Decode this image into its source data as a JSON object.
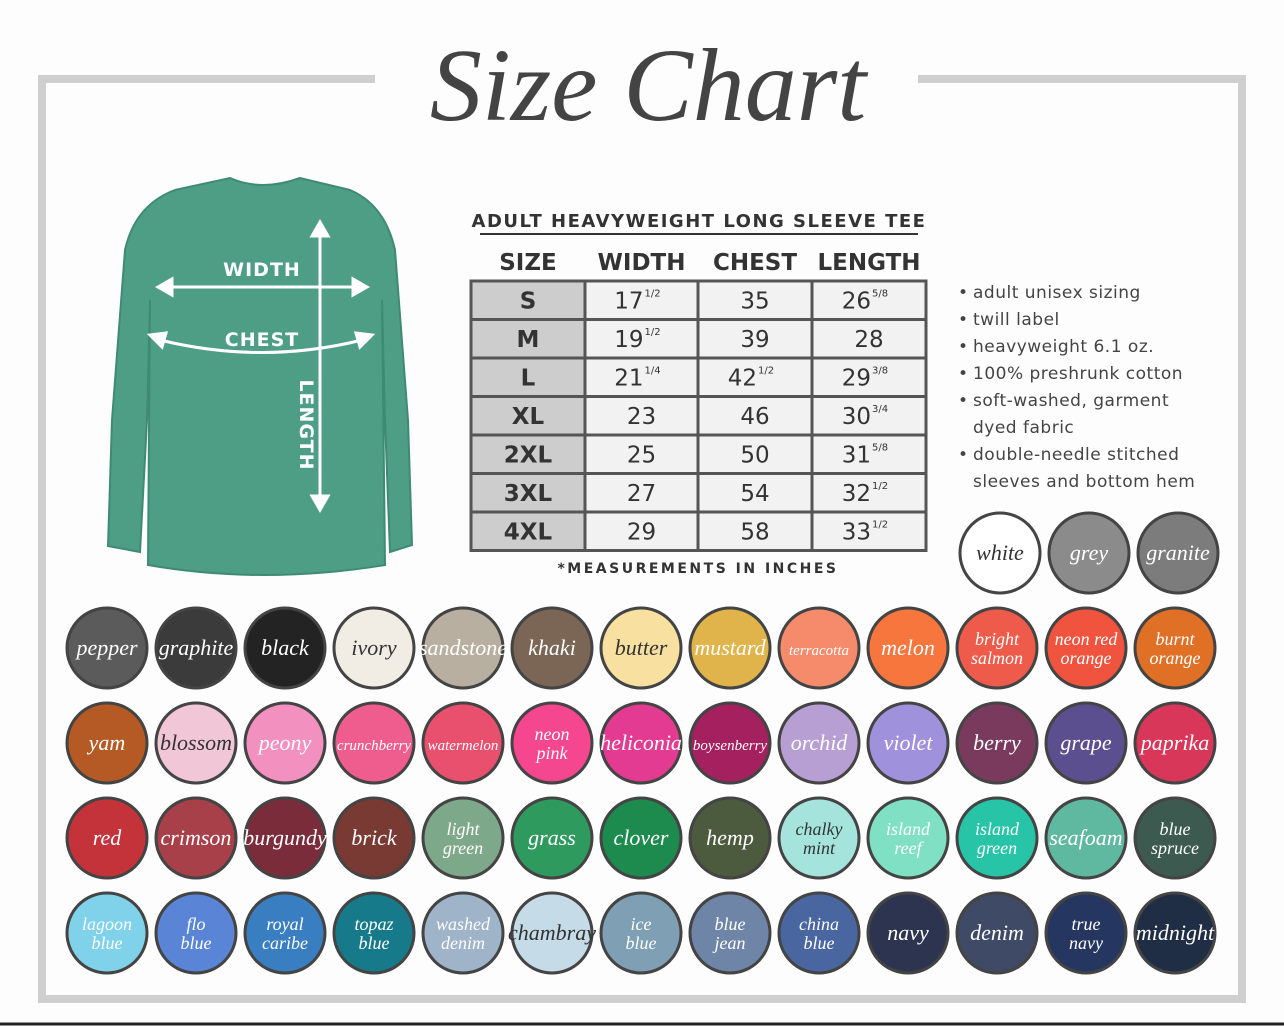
{
  "header": {
    "title": "Size Chart"
  },
  "shirt": {
    "width_label": "WIDTH",
    "chest_label": "CHEST",
    "length_label": "LENGTH"
  },
  "table": {
    "title": "ADULT HEAVYWEIGHT LONG SLEEVE TEE",
    "columns": [
      "SIZE",
      "WIDTH",
      "CHEST",
      "LENGTH"
    ],
    "rows": [
      [
        "S",
        {
          "whole": 17,
          "frac": "1/2"
        },
        35,
        {
          "whole": 26,
          "frac": "5/8"
        }
      ],
      [
        "M",
        {
          "whole": 19,
          "frac": "1/2"
        },
        39,
        28
      ],
      [
        "L",
        {
          "whole": 21,
          "frac": "1/4"
        },
        {
          "whole": 42,
          "frac": "1/2"
        },
        {
          "whole": 29,
          "frac": "3/8"
        }
      ],
      [
        "XL",
        23,
        46,
        {
          "whole": 30,
          "frac": "3/4"
        }
      ],
      [
        "2XL",
        25,
        50,
        {
          "whole": 31,
          "frac": "5/8"
        }
      ],
      [
        "3XL",
        27,
        54,
        {
          "whole": 32,
          "frac": "1/2"
        }
      ],
      [
        "4XL",
        29,
        58,
        {
          "whole": 33,
          "frac": "1/2"
        }
      ]
    ],
    "note": "*MEASUREMENTS IN INCHES"
  },
  "features": [
    "adult unisex sizing",
    "twill label",
    "heavyweight 6.1 oz.",
    "100% preshrunk cotton",
    "soft-washed, garment dyed fabric",
    "double-needle stitched sleeves and bottom hem"
  ],
  "featured_colors": [
    {
      "name": "white",
      "color": "#ffffff"
    },
    {
      "name": "grey",
      "color": "#8b8b8b"
    },
    {
      "name": "granite",
      "color": "#7c7c7c"
    }
  ],
  "colors": [
    {
      "name": "pepper",
      "color": "#5b5b5b"
    },
    {
      "name": "graphite",
      "color": "#3b3b3b"
    },
    {
      "name": "black",
      "color": "#232323"
    },
    {
      "name": "ivory",
      "color": "#f1ede5"
    },
    {
      "name": "sandstone",
      "color": "#b8af a1"
    },
    {
      "name": "khaki",
      "color": "#7b6656"
    },
    {
      "name": "butter",
      "color": "#f8e0a0"
    },
    {
      "name": "mustard",
      "color": "#e0b44a"
    },
    {
      "name": "terracotta",
      "color": "#f58b6b"
    },
    {
      "name": "melon",
      "color": "#f6763e"
    },
    {
      "name": "bright salmon",
      "color": "#ef5b4a"
    },
    {
      "name": "neon red orange",
      "color": "#f0543e"
    },
    {
      "name": "burnt orange",
      "color": "#e07026"
    },
    {
      "name": "yam",
      "color": "#b55a24"
    },
    {
      "name": "blossom",
      "color": "#f1c6d6"
    },
    {
      "name": "peony",
      "color": "#f290bf"
    },
    {
      "name": "crunchberry",
      "color": "#ef5d8f"
    },
    {
      "name": "watermelon",
      "color": "#e9506e"
    },
    {
      "name": "neon pink",
      "color": "#f5478f"
    },
    {
      "name": "heliconia",
      "color": "#e33b92"
    },
    {
      "name": "boysenberry",
      "color": "#a4205e"
    },
    {
      "name": "orchid",
      "color": "#b79fd3"
    },
    {
      "name": "violet",
      "color": "#9f91dc"
    },
    {
      "name": "berry",
      "color": "#7a3a5e"
    },
    {
      "name": "grape",
      "color": "#5b4f8f"
    },
    {
      "name": "paprika",
      "color": "#d8375a"
    },
    {
      "name": "red",
      "color": "#c4323a"
    },
    {
      "name": "crimson",
      "color": "#a8404a"
    },
    {
      "name": "burgundy",
      "color": "#7a2c3a"
    },
    {
      "name": "brick",
      "color": "#7a3a34"
    },
    {
      "name": "light green",
      "color": "#7ea88a"
    },
    {
      "name": "grass",
      "color": "#2e9a5e"
    },
    {
      "name": "clover",
      "color": "#1d8a4e"
    },
    {
      "name": "hemp",
      "color": "#4c5a3e"
    },
    {
      "name": "chalky mint",
      "color": "#a5e4dc"
    },
    {
      "name": "island reef",
      "color": "#7fe0c4"
    },
    {
      "name": "island green",
      "color": "#27c4a8"
    },
    {
      "name": "seafoam",
      "color": "#5fb8a0"
    },
    {
      "name": "blue spruce",
      "color": "#3d5a50"
    },
    {
      "name": "lagoon blue",
      "color": "#7fd2ea"
    },
    {
      "name": "flo blue",
      "color": "#5a85d6"
    },
    {
      "name": "royal caribe",
      "color": "#3a7ec2"
    },
    {
      "name": "topaz blue",
      "color": "#177a8a"
    },
    {
      "name": "washed denim",
      "color": "#9fb4c8"
    },
    {
      "name": "chambray",
      "color": "#c6dbe8"
    },
    {
      "name": "ice blue",
      "color": "#7f9fb5"
    },
    {
      "name": "blue jean",
      "color": "#6e85a8"
    },
    {
      "name": "china blue",
      "color": "#4a66a0"
    },
    {
      "name": "navy",
      "color": "#2c3450"
    },
    {
      "name": "denim",
      "color": "#3e4a66"
    },
    {
      "name": "true navy",
      "color": "#253760"
    },
    {
      "name": "midnight",
      "color": "#1f2d45"
    }
  ]
}
